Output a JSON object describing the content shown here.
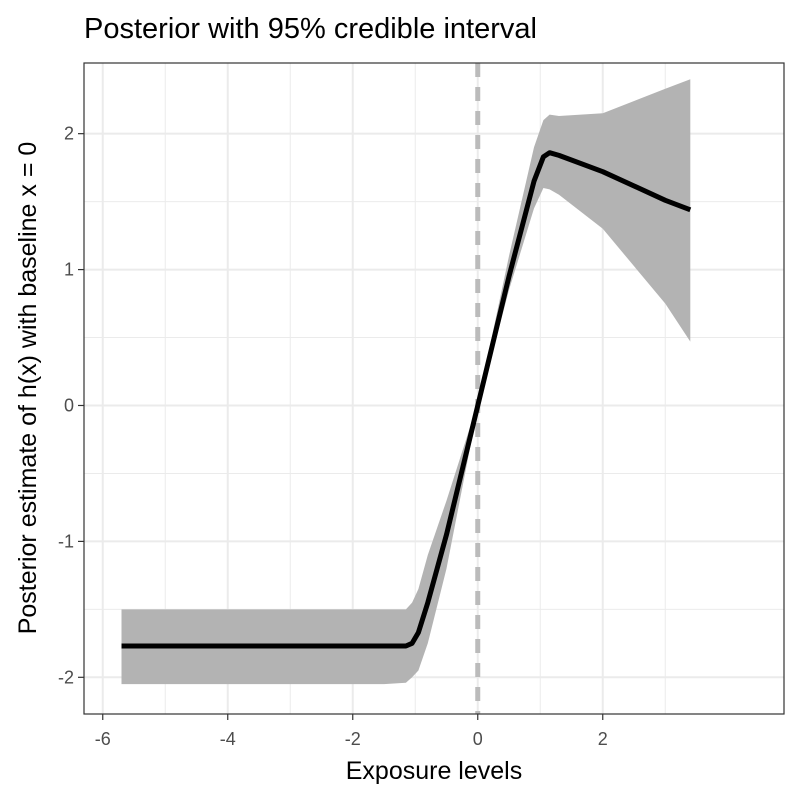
{
  "chart_data": {
    "type": "line",
    "title": "Posterior with 95% credible interval",
    "xlabel": "Exposure levels",
    "ylabel": "Posterior estimate of h(x) with baseline x = 0",
    "xlim": [
      -6.3,
      4.9
    ],
    "ylim": [
      -2.27,
      2.52
    ],
    "x_ticks": [
      -6,
      -4,
      -2,
      0,
      2
    ],
    "x_tick_labels": [
      "-6",
      "-4",
      "-2",
      "0",
      "2"
    ],
    "y_ticks": [
      -2,
      -1,
      0,
      1,
      2
    ],
    "y_tick_labels": [
      "-2",
      "-1",
      "0",
      "1",
      "2"
    ],
    "grid": true,
    "reference_line": {
      "x": 0,
      "style": "dashed",
      "color": "#bbbbbb"
    },
    "series": [
      {
        "x": [
          -5.7,
          -5.0,
          -4.0,
          -3.0,
          -2.0,
          -1.5,
          -1.15,
          -1.05,
          -0.95,
          -0.8,
          -0.5,
          0.0,
          0.5,
          0.9,
          1.05,
          1.15,
          1.3,
          2.0,
          3.0,
          3.4
        ],
        "mean": [
          -1.77,
          -1.77,
          -1.77,
          -1.77,
          -1.77,
          -1.77,
          -1.77,
          -1.75,
          -1.67,
          -1.45,
          -0.95,
          0.0,
          0.95,
          1.65,
          1.83,
          1.86,
          1.84,
          1.72,
          1.51,
          1.44
        ],
        "lower": [
          -2.05,
          -2.05,
          -2.05,
          -2.05,
          -2.05,
          -2.05,
          -2.04,
          -2.0,
          -1.95,
          -1.75,
          -1.2,
          -0.02,
          0.85,
          1.45,
          1.6,
          1.59,
          1.55,
          1.3,
          0.75,
          0.47
        ],
        "upper": [
          -1.5,
          -1.5,
          -1.5,
          -1.5,
          -1.5,
          -1.5,
          -1.5,
          -1.45,
          -1.35,
          -1.1,
          -0.7,
          0.02,
          1.1,
          1.9,
          2.1,
          2.14,
          2.13,
          2.15,
          2.33,
          2.4
        ]
      }
    ],
    "colors": {
      "band": "#b3b3b3",
      "line": "#000000",
      "grid": "#ebebeb",
      "reference": "#bbbbbb",
      "panel_border": "#333333"
    }
  }
}
